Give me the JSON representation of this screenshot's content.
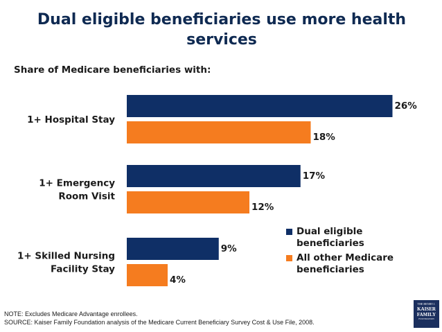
{
  "title": "Dual eligible beneficiaries use more health services",
  "subtitle": "Share of Medicare beneficiaries with:",
  "chart_data": {
    "type": "bar",
    "orientation": "horizontal",
    "categories": [
      "1+ Hospital Stay",
      "1+ Emergency Room Visit",
      "1+ Skilled Nursing Facility Stay"
    ],
    "series": [
      {
        "name": "Dual eligible beneficiaries",
        "values": [
          26,
          17,
          9
        ],
        "color": "#0f2f66"
      },
      {
        "name": "All other Medicare beneficiaries",
        "values": [
          18,
          12,
          4
        ],
        "color": "#f57c1f"
      }
    ],
    "value_suffix": "%",
    "legend_position": "bottom-right",
    "grid": false
  },
  "notes": {
    "note": "NOTE: Excludes Medicare Advantage enrollees.",
    "source": "SOURCE: Kaiser Family Foundation analysis of the Medicare Current Beneficiary Survey Cost & Use File, 2008."
  },
  "logo": {
    "line1": "THE HENRY J.",
    "line2a": "KAISER",
    "line2b": "FAMILY",
    "line3": "FOUNDATION"
  }
}
